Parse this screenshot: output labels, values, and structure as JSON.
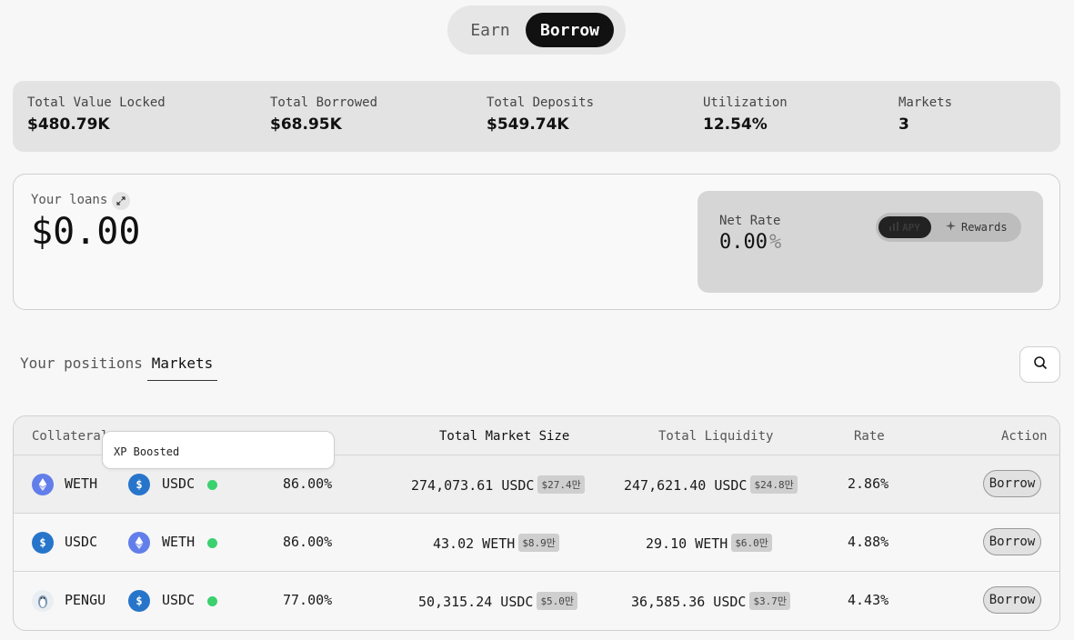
{
  "mode_toggle": {
    "earn": "Earn",
    "borrow": "Borrow"
  },
  "stats": [
    {
      "label": "Total Value Locked",
      "value": "$480.79K"
    },
    {
      "label": "Total Borrowed",
      "value": "$68.95K"
    },
    {
      "label": "Total Deposits",
      "value": "$549.74K"
    },
    {
      "label": "Utilization",
      "value": "12.54%"
    },
    {
      "label": "Markets",
      "value": "3"
    }
  ],
  "loans": {
    "label": "Your loans",
    "value": "$0.00",
    "net_rate_label": "Net Rate",
    "net_rate_value": "0.00",
    "net_rate_unit": "%",
    "apy_label": "APY",
    "rewards_label": "Rewards"
  },
  "tabs": {
    "positions": "Your positions",
    "markets": "Markets"
  },
  "table": {
    "headers": {
      "collateral": "Collateral",
      "total_market_size": "Total Market Size",
      "total_liquidity": "Total Liquidity",
      "rate": "Rate",
      "action": "Action"
    },
    "rows": [
      {
        "collateral": "WETH",
        "loan": "USDC",
        "ltv": "86.00%",
        "market_size": "274,073.61 USDC",
        "market_size_usd": "$27.4만",
        "liquidity": "247,621.40 USDC",
        "liquidity_usd": "$24.8만",
        "rate": "2.86%",
        "action": "Borrow"
      },
      {
        "collateral": "USDC",
        "loan": "WETH",
        "ltv": "86.00%",
        "market_size": "43.02 WETH",
        "market_size_usd": "$8.9만",
        "liquidity": "29.10 WETH",
        "liquidity_usd": "$6.0만",
        "rate": "4.88%",
        "action": "Borrow"
      },
      {
        "collateral": "PENGU",
        "loan": "USDC",
        "ltv": "77.00%",
        "market_size": "50,315.24 USDC",
        "market_size_usd": "$5.0만",
        "liquidity": "36,585.36 USDC",
        "liquidity_usd": "$3.7만",
        "rate": "4.43%",
        "action": "Borrow"
      }
    ]
  },
  "tooltip": {
    "text": "XP Boosted"
  },
  "colors": {
    "accent": "#111111",
    "xp_green": "#3bd16f",
    "eth": "#627eea",
    "usdc": "#2775ca"
  }
}
